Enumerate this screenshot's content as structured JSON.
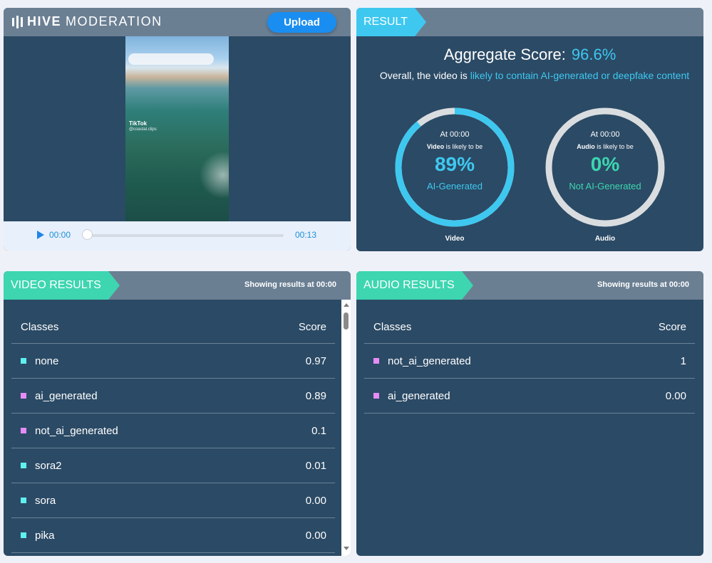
{
  "player": {
    "logo_bold": "HIVE",
    "logo_light": "MODERATION",
    "upload_label": "Upload",
    "watermark_brand": "TikTok",
    "watermark_handle": "@coastal.clips",
    "current_time": "00:00",
    "duration": "00:13",
    "progress": 0
  },
  "result": {
    "tag": "RESULT",
    "aggregate_label": "Aggregate Score:",
    "aggregate_value": "96.6%",
    "overall_prefix": "Overall, the video is ",
    "overall_highlight": "likely to contain AI-generated or deepfake content",
    "video_gauge": {
      "at": "At 00:00",
      "subject": "Video",
      "likely": " is likely to be",
      "percent": "89%",
      "label": "AI-Generated",
      "caption": "Video",
      "fraction": 0.89,
      "color": "#3ec8f0"
    },
    "audio_gauge": {
      "at": "At 00:00",
      "subject": "Audio",
      "likely": " is likely to be",
      "percent": "0%",
      "label": "Not AI-Generated",
      "caption": "Audio",
      "fraction": 0,
      "color": "#3dd6b0"
    }
  },
  "video_results": {
    "tag": "VIDEO RESULTS",
    "showing": "Showing results at 00:00",
    "col_class": "Classes",
    "col_score": "Score",
    "rows": [
      {
        "cls": "none",
        "score": "0.97",
        "color": "cyan"
      },
      {
        "cls": "ai_generated",
        "score": "0.89",
        "color": "pink"
      },
      {
        "cls": "not_ai_generated",
        "score": "0.1",
        "color": "pink"
      },
      {
        "cls": "sora2",
        "score": "0.01",
        "color": "cyan"
      },
      {
        "cls": "sora",
        "score": "0.00",
        "color": "cyan"
      },
      {
        "cls": "pika",
        "score": "0.00",
        "color": "cyan"
      }
    ]
  },
  "audio_results": {
    "tag": "AUDIO RESULTS",
    "showing": "Showing results at 00:00",
    "col_class": "Classes",
    "col_score": "Score",
    "rows": [
      {
        "cls": "not_ai_generated",
        "score": "1",
        "color": "pink"
      },
      {
        "cls": "ai_generated",
        "score": "0.00",
        "color": "pink"
      }
    ]
  }
}
